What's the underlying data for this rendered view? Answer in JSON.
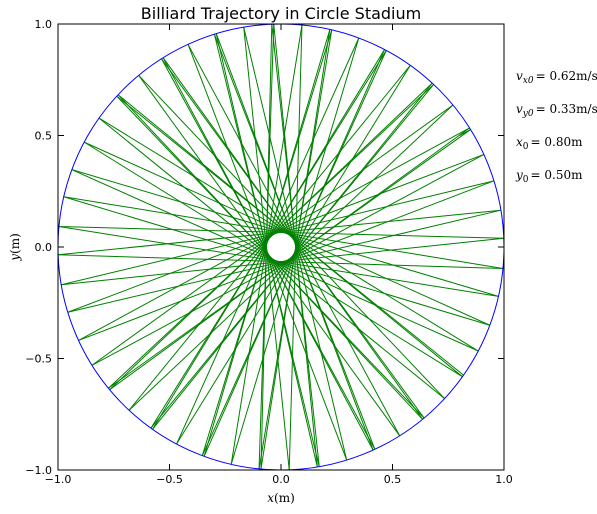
{
  "chart_data": {
    "type": "line",
    "title": "Billiard Trajectory in Circle Stadium",
    "xlabel_var": "x",
    "xlabel_unit": "(m)",
    "ylabel_var": "y",
    "ylabel_unit": "(m)",
    "xlim": [
      -1.0,
      1.0
    ],
    "ylim": [
      -1.0,
      1.0
    ],
    "xticks": [
      "−1.0",
      "−0.5",
      "0.0",
      "0.5",
      "1.0"
    ],
    "yticks": [
      "−1.0",
      "−0.5",
      "0.0",
      "0.5",
      "1.0"
    ],
    "boundary": {
      "name": "circle",
      "radius": 1.0,
      "color": "#0000ff"
    },
    "trajectory": {
      "color": "#008000",
      "initial": {
        "vx0": 0.62,
        "vy0": 0.33,
        "x0": 0.8,
        "y0": 0.5
      },
      "reflections": 64
    },
    "annotations": [
      {
        "var": "v",
        "sub": "x0",
        "value": "= 0.62m/s"
      },
      {
        "var": "v",
        "sub": "y0",
        "value": "= 0.33m/s"
      },
      {
        "var": "x",
        "sub": "0",
        "value": "= 0.80m"
      },
      {
        "var": "y",
        "sub": "0",
        "value": "= 0.50m"
      }
    ]
  }
}
